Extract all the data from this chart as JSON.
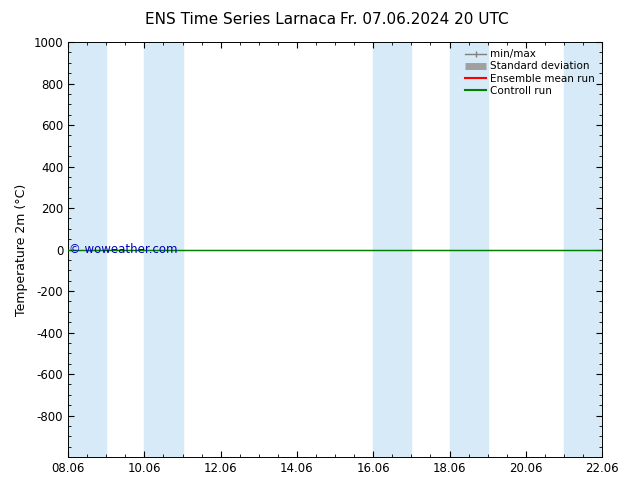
{
  "title": "ENS Time Series Larnaca",
  "title2": "Fr. 07.06.2024 20 UTC",
  "ylabel": "Temperature 2m (°C)",
  "ylim_top": -1000,
  "ylim_bottom": 1000,
  "yticks": [
    -800,
    -600,
    -400,
    -200,
    0,
    200,
    400,
    600,
    800,
    1000
  ],
  "xlim": [
    0,
    14
  ],
  "xtick_labels": [
    "08.06",
    "10.06",
    "12.06",
    "14.06",
    "16.06",
    "18.06",
    "20.06",
    "22.06"
  ],
  "xtick_positions": [
    0,
    2,
    4,
    6,
    8,
    10,
    12,
    14
  ],
  "shaded_spans": [
    [
      0,
      1.0
    ],
    [
      2.0,
      3.0
    ],
    [
      8.0,
      9.0
    ],
    [
      10.0,
      11.0
    ],
    [
      13.0,
      14.0
    ]
  ],
  "shaded_color": "#d6eaf8",
  "control_run_y": 0,
  "control_run_color": "#008000",
  "ensemble_mean_color": "#ff0000",
  "watermark": "© woweather.com",
  "watermark_color": "#0000bb",
  "bg_color": "#ffffff",
  "plot_bg_color": "#ffffff",
  "legend_labels": [
    "min/max",
    "Standard deviation",
    "Ensemble mean run",
    "Controll run"
  ],
  "legend_colors_line": [
    "#808080",
    "#a0a0a0",
    "#ff0000",
    "#008000"
  ],
  "title_fontsize": 11,
  "tick_fontsize": 8.5,
  "ylabel_fontsize": 9
}
